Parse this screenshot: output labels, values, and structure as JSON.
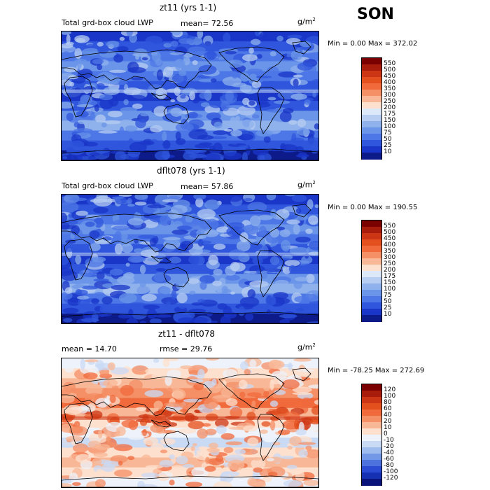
{
  "season": "SON",
  "panels": [
    {
      "title": "zt11 (yrs 1-1)",
      "field": "Total grd-box cloud LWP",
      "stat_text": "mean=  72.56",
      "units_base": "g/m",
      "units_exp": "2",
      "minmax": "Min =   0.00 Max = 372.02",
      "colorbar_labels": [
        "550",
        "500",
        "450",
        "400",
        "350",
        "300",
        "250",
        "200",
        "175",
        "150",
        "100",
        "75",
        "50",
        "25",
        "10"
      ],
      "colors": [
        "#7b0000",
        "#a81c0c",
        "#cc3614",
        "#e34f1d",
        "#f06a3c",
        "#f48f66",
        "#f8b796",
        "#fde0cd",
        "#dde8f8",
        "#b7cdf2",
        "#8fb1ec",
        "#6b95e8",
        "#4d77e6",
        "#2f56dc",
        "#1a36c8",
        "#0c1a8a"
      ]
    },
    {
      "title": "dflt078 (yrs 1-1)",
      "field": "Total grd-box cloud LWP",
      "stat_text": "mean=  57.86",
      "units_base": "g/m",
      "units_exp": "2",
      "minmax": "Min =   0.00 Max = 190.55",
      "colorbar_labels": [
        "550",
        "500",
        "450",
        "400",
        "350",
        "300",
        "250",
        "200",
        "175",
        "150",
        "100",
        "75",
        "50",
        "25",
        "10"
      ],
      "colors": [
        "#7b0000",
        "#a81c0c",
        "#cc3614",
        "#e34f1d",
        "#f06a3c",
        "#f48f66",
        "#f8b796",
        "#fde0cd",
        "#dde8f8",
        "#b7cdf2",
        "#8fb1ec",
        "#6b95e8",
        "#4d77e6",
        "#2f56dc",
        "#1a36c8",
        "#0c1a8a"
      ]
    },
    {
      "title": "zt11 - dflt078",
      "mean_text": "mean =  14.70",
      "rmse_text": "rmse =  29.76",
      "units_base": "g/m",
      "units_exp": "2",
      "minmax": "Min = -78.25 Max = 272.69",
      "colorbar_labels": [
        "120",
        "100",
        "80",
        "60",
        "40",
        "20",
        "10",
        "0",
        "-10",
        "-20",
        "-40",
        "-60",
        "-80",
        "-100",
        "-120"
      ],
      "colors": [
        "#7b0000",
        "#a81c0c",
        "#cc3614",
        "#e34f1d",
        "#f06a3c",
        "#f48f66",
        "#f8b796",
        "#fde0cd",
        "#eef3fb",
        "#c9daf4",
        "#9fbcee",
        "#7398e6",
        "#4d72de",
        "#2b4cd2",
        "#1630b4",
        "#0a137a"
      ]
    }
  ]
}
